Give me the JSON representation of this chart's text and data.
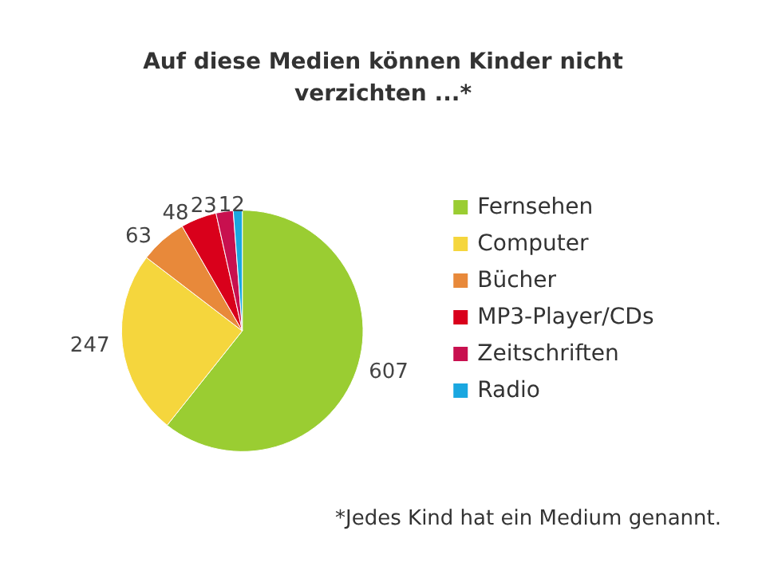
{
  "chart_data": {
    "type": "pie",
    "title": "Auf diese Medien können Kinder nicht\nverzichten ...*",
    "categories": [
      "Fernsehen",
      "Computer",
      "Bücher",
      "MP3-Player/CDs",
      "Zeitschriften",
      "Radio"
    ],
    "values": [
      607,
      247,
      63,
      48,
      23,
      12
    ],
    "colors": [
      "#9acd32",
      "#f5d63d",
      "#e8893a",
      "#d9001b",
      "#c8104f",
      "#1aa7e0"
    ],
    "data_labels": true,
    "legend": "right",
    "annotations": [
      "*Jedes Kind hat ein Medium genannt."
    ]
  }
}
